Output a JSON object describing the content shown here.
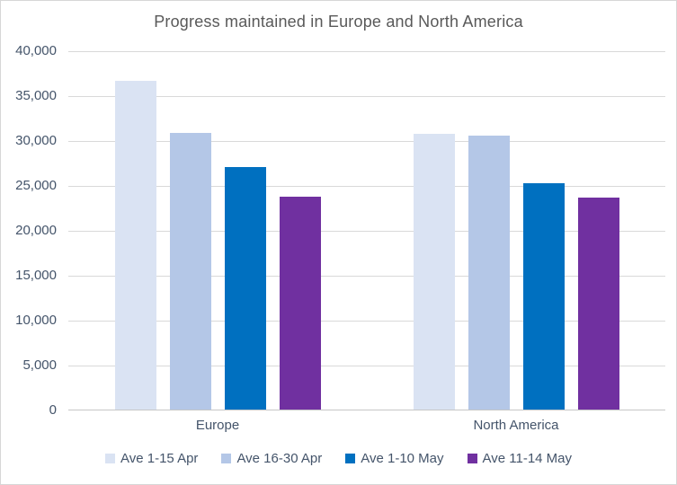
{
  "title": "Progress maintained in Europe and North America",
  "colors": {
    "title_text": "#595959",
    "axis_text": "#44546a",
    "gridline": "#d9d9d9",
    "axis_line": "#c6c6c6",
    "background": "#ffffff",
    "frame_border": "#d7d7d7"
  },
  "chart_data": {
    "type": "bar",
    "title": "Progress maintained in Europe and North America",
    "categories": [
      "Europe",
      "North America"
    ],
    "series": [
      {
        "name": "Ave 1-15 Apr",
        "color": "#dae3f3",
        "values": [
          36600,
          30700
        ]
      },
      {
        "name": "Ave 16-30 Apr",
        "color": "#b4c7e7",
        "values": [
          30800,
          30500
        ]
      },
      {
        "name": "Ave 1-10 May",
        "color": "#0070c0",
        "values": [
          27000,
          25200
        ]
      },
      {
        "name": "Ave 11-14 May",
        "color": "#7030a0",
        "values": [
          23700,
          23600
        ]
      }
    ],
    "xlabel": "",
    "ylabel": "",
    "ylim": [
      0,
      40000
    ],
    "ytick_step": 5000,
    "ytick_labels": [
      "0",
      "5,000",
      "10,000",
      "15,000",
      "20,000",
      "25,000",
      "30,000",
      "35,000",
      "40,000"
    ],
    "grid": true,
    "legend_position": "bottom"
  }
}
